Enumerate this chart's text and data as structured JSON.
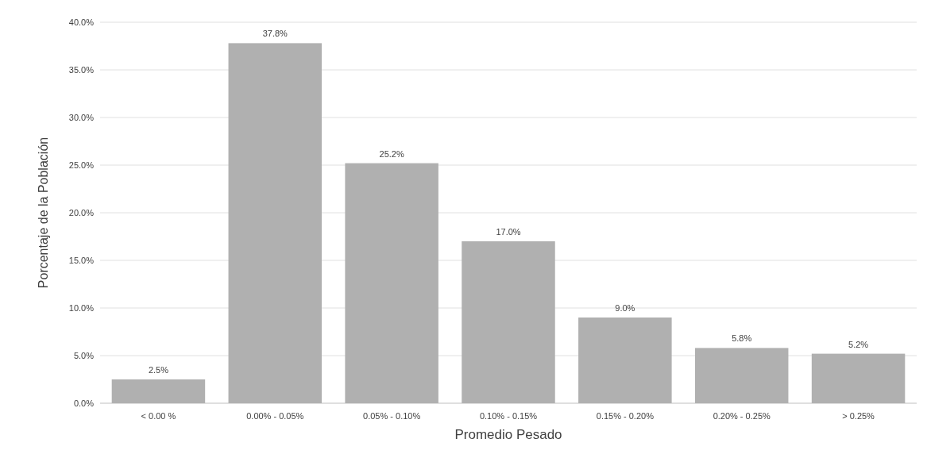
{
  "chart_data": {
    "type": "bar",
    "xlabel": "Promedio Pesado",
    "ylabel": "Porcentaje de la Población",
    "categories": [
      "< 0.00 %",
      "0.00% - 0.05%",
      "0.05% - 0.10%",
      "0.10% - 0.15%",
      "0.15% - 0.20%",
      "0.20% - 0.25%",
      "> 0.25%"
    ],
    "values": [
      2.5,
      37.8,
      25.2,
      17.0,
      9.0,
      5.8,
      5.2
    ],
    "value_labels": [
      "2.5%",
      "37.8%",
      "25.2%",
      "17.0%",
      "9.0%",
      "5.8%",
      "5.2%"
    ],
    "color": "#b0b0b0",
    "ylim": [
      0,
      40
    ],
    "yticks": [
      {
        "value": 0,
        "label": "0.0%"
      },
      {
        "value": 5,
        "label": "5.0%"
      },
      {
        "value": 10,
        "label": "10.0%"
      },
      {
        "value": 15,
        "label": "15.0%"
      },
      {
        "value": 20,
        "label": "20.0%"
      },
      {
        "value": 25,
        "label": "25.0%"
      },
      {
        "value": 30,
        "label": "30.0%"
      },
      {
        "value": 35,
        "label": "35.0%"
      },
      {
        "value": 40,
        "label": "40.0%"
      }
    ],
    "grid": "y"
  }
}
